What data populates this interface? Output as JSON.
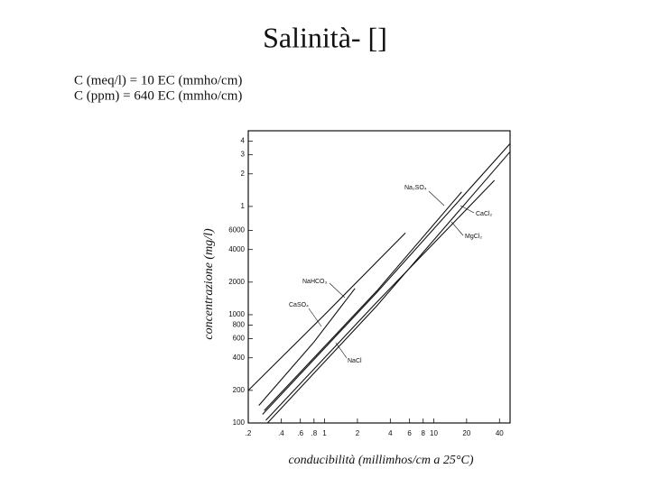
{
  "chart_data": {
    "type": "line",
    "title": "Salinità- []",
    "formulas": [
      "C (meq/l) = 10 EC (mmho/cm)",
      "C (ppm) = 640 EC (mmho/cm)"
    ],
    "x_label": "conducibilità (millimhos/cm a 25°C)",
    "y_label": "concentrazione (mg/l)",
    "xscale": "log",
    "yscale": "log",
    "xlim": [
      0.2,
      50
    ],
    "ylim": [
      100,
      50000
    ],
    "xticks": [
      {
        "value": 0.2,
        "label": ".2"
      },
      {
        "value": 0.4,
        "label": ".4"
      },
      {
        "value": 0.6,
        "label": ".6"
      },
      {
        "value": 0.8,
        "label": ".8"
      },
      1,
      2,
      4,
      6,
      8,
      10,
      20,
      40
    ],
    "yticks": [
      100,
      200,
      400,
      600,
      800,
      1000,
      2000,
      4000,
      6000,
      {
        "value": 10000,
        "label": "1"
      },
      {
        "value": 20000,
        "label": "2"
      },
      {
        "value": 30000,
        "label": "3"
      },
      {
        "value": 40000,
        "label": "4"
      }
    ],
    "series": [
      {
        "name": "Na₂SO₄",
        "color": "#111111",
        "x": [
          0.28,
          3,
          18
        ],
        "values": [
          130,
          1650,
          13600
        ]
      },
      {
        "name": "NaHCO₃",
        "color": "#111111",
        "x": [
          0.2,
          1,
          5.5
        ],
        "values": [
          200,
          1000,
          5700
        ]
      },
      {
        "name": "CaSO₄",
        "color": "#111111",
        "x": [
          0.25,
          0.8,
          1.9
        ],
        "values": [
          145,
          560,
          1750
        ]
      },
      {
        "name": "CaCl₂",
        "color": "#111111",
        "x": [
          0.27,
          3,
          50
        ],
        "values": [
          120,
          1600,
          38000
        ]
      },
      {
        "name": "MgCl₂",
        "color": "#111111",
        "x": [
          0.29,
          3,
          36
        ],
        "values": [
          106,
          1300,
          17400
        ]
      },
      {
        "name": "NaCl",
        "color": "#111111",
        "x": [
          0.3,
          3,
          50
        ],
        "values": [
          100,
          1200,
          32000
        ]
      }
    ]
  }
}
